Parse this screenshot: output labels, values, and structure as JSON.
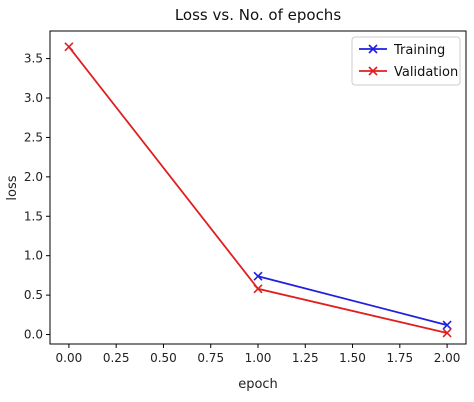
{
  "chart_data": {
    "type": "line",
    "title": "Loss vs. No. of epochs",
    "xlabel": "epoch",
    "ylabel": "loss",
    "xlim": [
      -0.1,
      2.1
    ],
    "ylim": [
      -0.12,
      3.85
    ],
    "xticks": [
      0.0,
      0.25,
      0.5,
      0.75,
      1.0,
      1.25,
      1.5,
      1.75,
      2.0
    ],
    "xtick_labels": [
      "0.00",
      "0.25",
      "0.50",
      "0.75",
      "1.00",
      "1.25",
      "1.50",
      "1.75",
      "2.00"
    ],
    "yticks": [
      0.0,
      0.5,
      1.0,
      1.5,
      2.0,
      2.5,
      3.0,
      3.5
    ],
    "ytick_labels": [
      "0.0",
      "0.5",
      "1.0",
      "1.5",
      "2.0",
      "2.5",
      "3.0",
      "3.5"
    ],
    "grid": false,
    "legend_position": "top-right",
    "series": [
      {
        "name": "Training",
        "color": "#1f1fe0",
        "marker": "x",
        "x": [
          1.0,
          2.0
        ],
        "y": [
          0.74,
          0.12
        ]
      },
      {
        "name": "Validation",
        "color": "#e01f1f",
        "marker": "x",
        "x": [
          0.0,
          1.0,
          2.0
        ],
        "y": [
          3.65,
          0.58,
          0.02
        ]
      }
    ]
  }
}
